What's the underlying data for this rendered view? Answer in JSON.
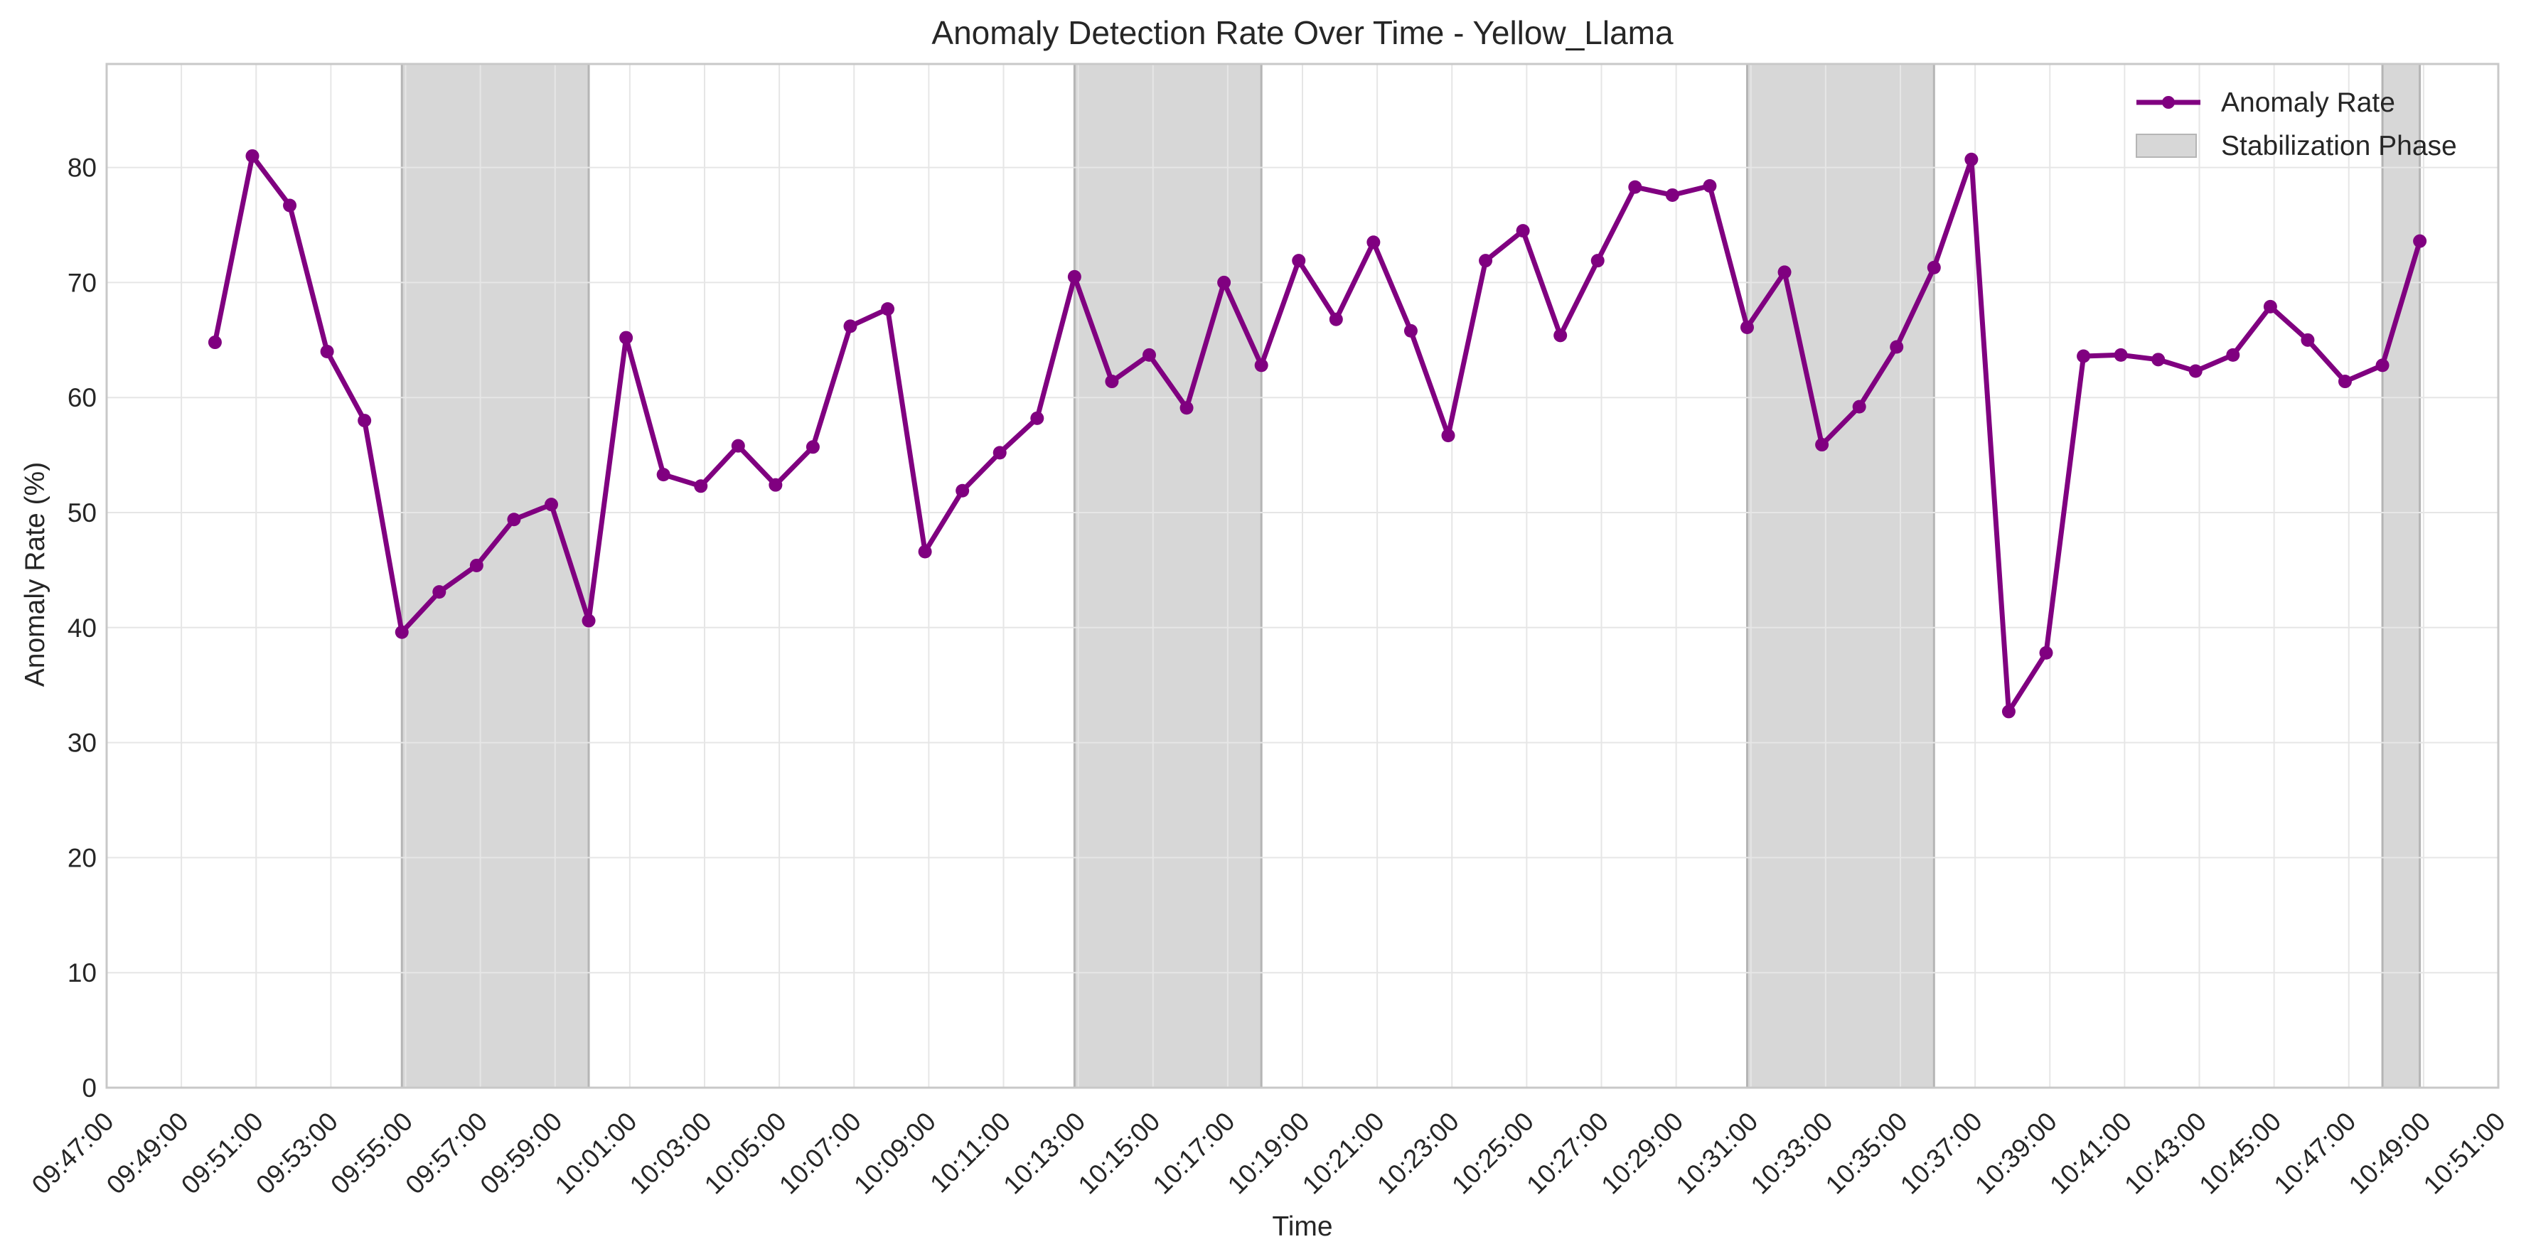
{
  "chart_data": {
    "type": "line",
    "title": "Anomaly Detection Rate Over Time - Yellow_Llama",
    "xlabel": "Time",
    "ylabel": "Anomaly Rate (%)",
    "xlim": [
      "09:47:00",
      "10:51:00"
    ],
    "ylim": [
      0,
      89
    ],
    "grid": true,
    "legend_position": "top-right",
    "x_ticks": [
      "09:47:00",
      "09:49:00",
      "09:51:00",
      "09:53:00",
      "09:55:00",
      "09:57:00",
      "09:59:00",
      "10:01:00",
      "10:03:00",
      "10:05:00",
      "10:07:00",
      "10:09:00",
      "10:11:00",
      "10:13:00",
      "10:15:00",
      "10:17:00",
      "10:19:00",
      "10:21:00",
      "10:23:00",
      "10:25:00",
      "10:27:00",
      "10:29:00",
      "10:31:00",
      "10:33:00",
      "10:35:00",
      "10:37:00",
      "10:39:00",
      "10:41:00",
      "10:43:00",
      "10:45:00",
      "10:47:00",
      "10:49:00",
      "10:51:00"
    ],
    "y_ticks": [
      0,
      10,
      20,
      30,
      40,
      50,
      60,
      70,
      80
    ],
    "series": [
      {
        "name": "Anomaly Rate",
        "color": "#800080",
        "marker": "circle",
        "start_time": "09:49:54",
        "step_seconds": 60,
        "values": [
          64.8,
          81.0,
          76.7,
          64.0,
          58.0,
          39.6,
          43.1,
          45.4,
          49.4,
          50.7,
          40.6,
          65.2,
          53.3,
          52.3,
          55.8,
          52.4,
          55.7,
          66.2,
          67.7,
          46.6,
          51.9,
          55.2,
          58.2,
          70.5,
          61.4,
          63.7,
          59.1,
          70.0,
          62.8,
          71.9,
          66.8,
          73.5,
          65.8,
          56.7,
          71.9,
          74.5,
          65.4,
          71.9,
          78.3,
          77.6,
          78.4,
          66.1,
          70.9,
          55.9,
          59.2,
          64.4,
          71.3,
          80.7,
          32.7,
          37.8,
          63.6,
          63.7,
          63.3,
          62.3,
          63.7,
          67.9,
          65.0,
          61.4,
          62.8,
          73.6
        ]
      }
    ],
    "stabilization_phases": [
      {
        "start": "09:54:54",
        "end": "09:59:54"
      },
      {
        "start": "10:12:54",
        "end": "10:17:54"
      },
      {
        "start": "10:30:54",
        "end": "10:35:54"
      },
      {
        "start": "10:47:54",
        "end": "10:48:54"
      }
    ],
    "legend": [
      {
        "label": "Anomaly Rate",
        "kind": "line"
      },
      {
        "label": "Stabilization Phase",
        "kind": "patch"
      }
    ],
    "colors": {
      "line": "#800080",
      "phase_fill": "#d7d7d7",
      "phase_edge": "#b5b5b5",
      "grid": "#e6e6e6",
      "frame": "#c8c8c8"
    }
  }
}
